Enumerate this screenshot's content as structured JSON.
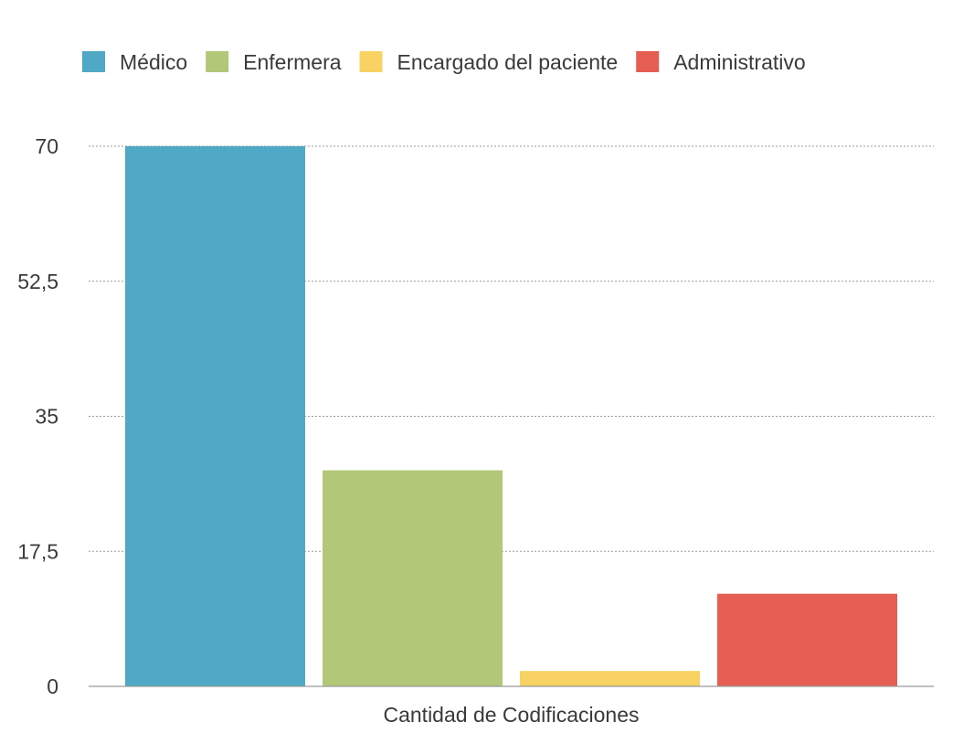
{
  "chart_data": {
    "type": "bar",
    "categories": [
      "Cantidad de Codificaciones"
    ],
    "series": [
      {
        "name": "Médico",
        "values": [
          70
        ],
        "color": "#4fa8c5"
      },
      {
        "name": "Enfermera",
        "values": [
          28
        ],
        "color": "#b3c778"
      },
      {
        "name": "Encargado del paciente",
        "values": [
          2
        ],
        "color": "#f8d262"
      },
      {
        "name": "Administrativo",
        "values": [
          12
        ],
        "color": "#e65d51"
      }
    ],
    "yticks": [
      {
        "value": 0,
        "label": "0"
      },
      {
        "value": 17.5,
        "label": "17,5"
      },
      {
        "value": 35,
        "label": "35"
      },
      {
        "value": 52.5,
        "label": "52,5"
      },
      {
        "value": 70,
        "label": "70"
      }
    ],
    "ylim": [
      0,
      70
    ],
    "xlabel": "Cantidad de Codificaciones",
    "ylabel": "",
    "title": "",
    "grid": "dotted horizontal",
    "legend_position": "top-left",
    "colors": {
      "gridline": "#9a9a9a",
      "axis": "#9a9a9a",
      "text": "#3a3a3a"
    }
  }
}
